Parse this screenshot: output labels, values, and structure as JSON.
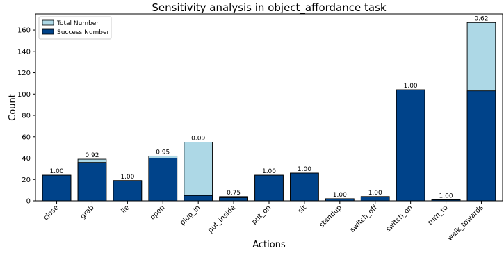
{
  "chart_data": {
    "type": "bar",
    "title": "Sensitivity analysis in object_affordance task",
    "xlabel": "Actions",
    "ylabel": "Count",
    "ylim": [
      0,
      175
    ],
    "yticks": [
      0,
      20,
      40,
      60,
      80,
      100,
      120,
      140,
      160
    ],
    "categories": [
      "close",
      "grab",
      "lie",
      "open",
      "plug_in",
      "put_inside",
      "put_on",
      "sit",
      "standup",
      "switch_off",
      "switch_on",
      "turn_to",
      "walk_towards"
    ],
    "series": [
      {
        "name": "Total Number",
        "color": "#add8e6",
        "values": [
          24,
          39,
          19,
          42,
          55,
          4,
          24,
          26,
          2,
          4,
          104,
          1,
          167
        ]
      },
      {
        "name": "Success Number",
        "color": "#00438a",
        "values": [
          24,
          36,
          19,
          40,
          5,
          3,
          24,
          26,
          2,
          4,
          104,
          1,
          103
        ]
      }
    ],
    "ratio_labels": [
      "1.00",
      "0.92",
      "1.00",
      "0.95",
      "0.09",
      "0.75",
      "1.00",
      "1.00",
      "1.00",
      "1.00",
      "1.00",
      "1.00",
      "0.62"
    ],
    "legend_position": "top-left",
    "grid": false
  }
}
